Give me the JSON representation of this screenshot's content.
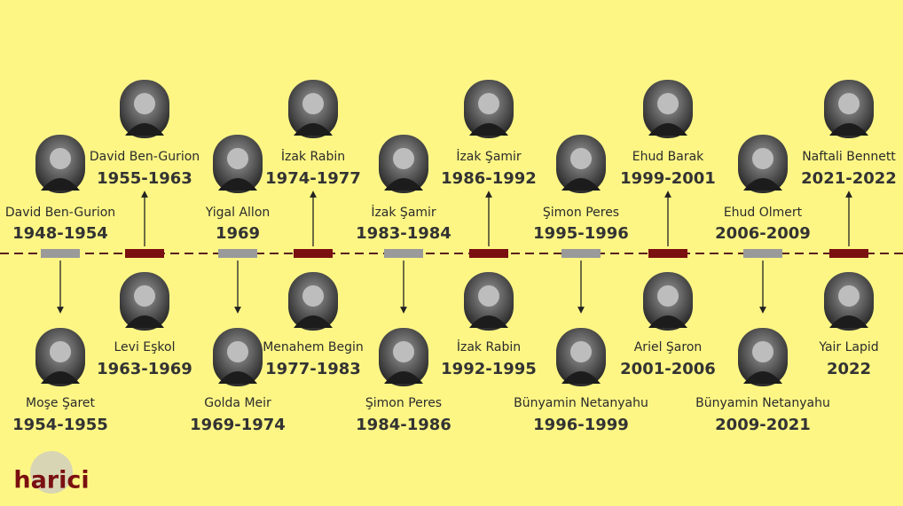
{
  "brand": "harici",
  "leaders": [
    {
      "name": "David Ben-Gurion",
      "term": "1948-1954"
    },
    {
      "name": "Moşe Şaret",
      "term": "1954-1955"
    },
    {
      "name": "David Ben-Gurion",
      "term": "1955-1963"
    },
    {
      "name": "Levi Eşkol",
      "term": "1963-1969"
    },
    {
      "name": "Yigal Allon",
      "term": "1969"
    },
    {
      "name": "Golda Meir",
      "term": "1969-1974"
    },
    {
      "name": "İzak Rabin",
      "term": "1974-1977"
    },
    {
      "name": "Menahem Begin",
      "term": "1977-1983"
    },
    {
      "name": "İzak Şamir",
      "term": "1983-1984"
    },
    {
      "name": "Şimon Peres",
      "term": "1984-1986"
    },
    {
      "name": "İzak Şamir",
      "term": "1986-1992"
    },
    {
      "name": "İzak Rabin",
      "term": "1992-1995"
    },
    {
      "name": "Şimon Peres",
      "term": "1995-1996"
    },
    {
      "name": "Bünyamin Netanyahu",
      "term": "1996-1999"
    },
    {
      "name": "Ehud Barak",
      "term": "1999-2001"
    },
    {
      "name": "Ariel Şaron",
      "term": "2001-2006"
    },
    {
      "name": "Ehud Olmert",
      "term": "2006-2009"
    },
    {
      "name": "Bünyamin Netanyahu",
      "term": "2009-2021"
    },
    {
      "name": "Naftali Bennett",
      "term": "2021-2022"
    },
    {
      "name": "Yair Lapid",
      "term": "2022"
    }
  ]
}
